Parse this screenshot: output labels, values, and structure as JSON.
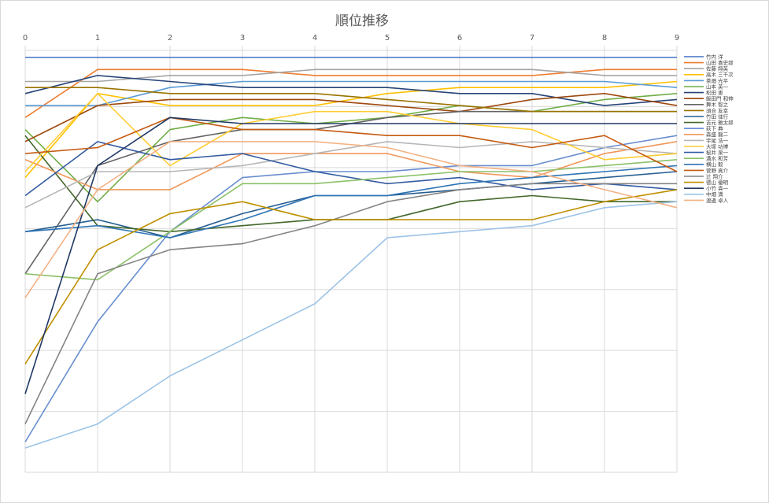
{
  "chart_data": {
    "type": "line",
    "title": "順位推移",
    "x": [
      0,
      1,
      2,
      3,
      4,
      5,
      6,
      7,
      8,
      9
    ],
    "x_axis_position": "top",
    "y_reversed": true,
    "ylim": [
      1,
      35
    ],
    "grid": "horizontal and vertical",
    "legend_position": "right",
    "series": [
      {
        "name": "竹内 洋",
        "color": "#4472c4",
        "values": [
          1,
          1,
          1,
          1,
          1,
          1,
          1,
          1,
          1,
          1
        ]
      },
      {
        "name": "山田 喜史郎",
        "color": "#ed7d31",
        "values": [
          6,
          2,
          2,
          2,
          2.5,
          2.5,
          2.5,
          2.5,
          2,
          2
        ]
      },
      {
        "name": "佐藤 翔英",
        "color": "#a5a5a5",
        "values": [
          3,
          3,
          2.5,
          2.5,
          2,
          2,
          2,
          2,
          2.5,
          2.5
        ]
      },
      {
        "name": "高木 三千次",
        "color": "#ffc000",
        "values": [
          11,
          4,
          5,
          5,
          5,
          4,
          3.5,
          3.5,
          3.5,
          3
        ]
      },
      {
        "name": "茶畑 光平",
        "color": "#5b9bd5",
        "values": [
          5,
          5,
          3.5,
          3,
          3,
          3,
          3,
          3,
          3,
          3.5
        ]
      },
      {
        "name": "山本 英一",
        "color": "#70ad47",
        "values": [
          7,
          13,
          7,
          6,
          6.5,
          6,
          5,
          5.5,
          4.5,
          4
        ]
      },
      {
        "name": "松田 恵",
        "color": "#264478",
        "values": [
          4,
          2.5,
          3,
          3.5,
          3.5,
          3.5,
          4,
          4,
          5,
          4.5
        ]
      },
      {
        "name": "飯田門 和伸",
        "color": "#9e480e",
        "values": [
          8,
          5,
          4.5,
          4.5,
          4.5,
          5,
          5.5,
          4.5,
          4,
          5
        ]
      },
      {
        "name": "舞木 智之",
        "color": "#636363",
        "values": [
          19,
          10,
          8,
          7,
          7,
          6,
          5.5,
          5.5,
          5.5,
          5.5
        ]
      },
      {
        "name": "須合 友幸",
        "color": "#997300",
        "values": [
          3.5,
          3.5,
          4,
          4,
          4,
          4.5,
          5,
          5.5,
          5.5,
          5.5
        ]
      },
      {
        "name": "竹田 佳行",
        "color": "#255e91",
        "values": [
          15.5,
          14.5,
          16,
          14,
          12.5,
          12.5,
          12,
          11.5,
          11,
          10.5
        ]
      },
      {
        "name": "吉元 雅太郎",
        "color": "#43682b",
        "values": [
          7.5,
          15,
          15.5,
          15,
          14.5,
          14.5,
          13,
          12.5,
          13,
          13
        ]
      },
      {
        "name": "荻下 典",
        "color": "#698ed0",
        "values": [
          33,
          23,
          15.5,
          11,
          10.5,
          10.5,
          10,
          10,
          8.5,
          7.5
        ]
      },
      {
        "name": "森盛 龍二",
        "color": "#f1975a",
        "values": [
          9.5,
          12,
          12,
          9,
          9,
          9,
          10.5,
          11,
          9,
          8
        ]
      },
      {
        "name": "宇尾 浩一",
        "color": "#b7b7b7",
        "values": [
          13.5,
          10.5,
          10.5,
          10,
          9,
          8,
          8.5,
          8,
          8.5,
          9
        ]
      },
      {
        "name": "大塚 功博",
        "color": "#ffcd33",
        "values": [
          10.5,
          4,
          10,
          6.5,
          5.5,
          5.5,
          6.5,
          7,
          9.5,
          9
        ]
      },
      {
        "name": "桜井 泉一",
        "color": "#335aa1",
        "values": [
          12.5,
          8,
          9.5,
          9,
          10.5,
          11.5,
          11,
          12,
          11.5,
          12
        ]
      },
      {
        "name": "溝水 和芳",
        "color": "#8cc168",
        "values": [
          19,
          19.5,
          15.5,
          11.5,
          11.5,
          11,
          10.5,
          10.5,
          10,
          9.5
        ]
      },
      {
        "name": "横山 毅",
        "color": "#2e75b6",
        "values": [
          15.5,
          15,
          16,
          14.5,
          12.5,
          12.5,
          11.5,
          11,
          10.5,
          10
        ]
      },
      {
        "name": "菅野 真介",
        "color": "#c55a11",
        "values": [
          9,
          8.5,
          6,
          7,
          7,
          7.5,
          7.5,
          8.5,
          7.5,
          10.5
        ]
      },
      {
        "name": "辻 翔介",
        "color": "#848484",
        "values": [
          31.5,
          19,
          17,
          16.5,
          15,
          13,
          12,
          11.5,
          11.5,
          11.5
        ]
      },
      {
        "name": "徳山 優明",
        "color": "#bf9000",
        "values": [
          26.5,
          17,
          14,
          13,
          14.5,
          14.5,
          14.5,
          14.5,
          13,
          12
        ]
      },
      {
        "name": "小竹 真一",
        "color": "#203864",
        "values": [
          29,
          10,
          6,
          6.5,
          6.5,
          6.5,
          6.5,
          6.5,
          6.5,
          6.5
        ]
      },
      {
        "name": "中畑 満",
        "color": "#9dc3e6",
        "values": [
          33.5,
          31.5,
          27.5,
          24.5,
          21.5,
          16,
          15.5,
          15,
          13.5,
          13
        ]
      },
      {
        "name": "渡邊 卓人",
        "color": "#f4b183",
        "values": [
          21,
          12,
          8,
          8,
          8,
          8.5,
          10,
          10.5,
          12,
          13.5
        ]
      }
    ]
  }
}
